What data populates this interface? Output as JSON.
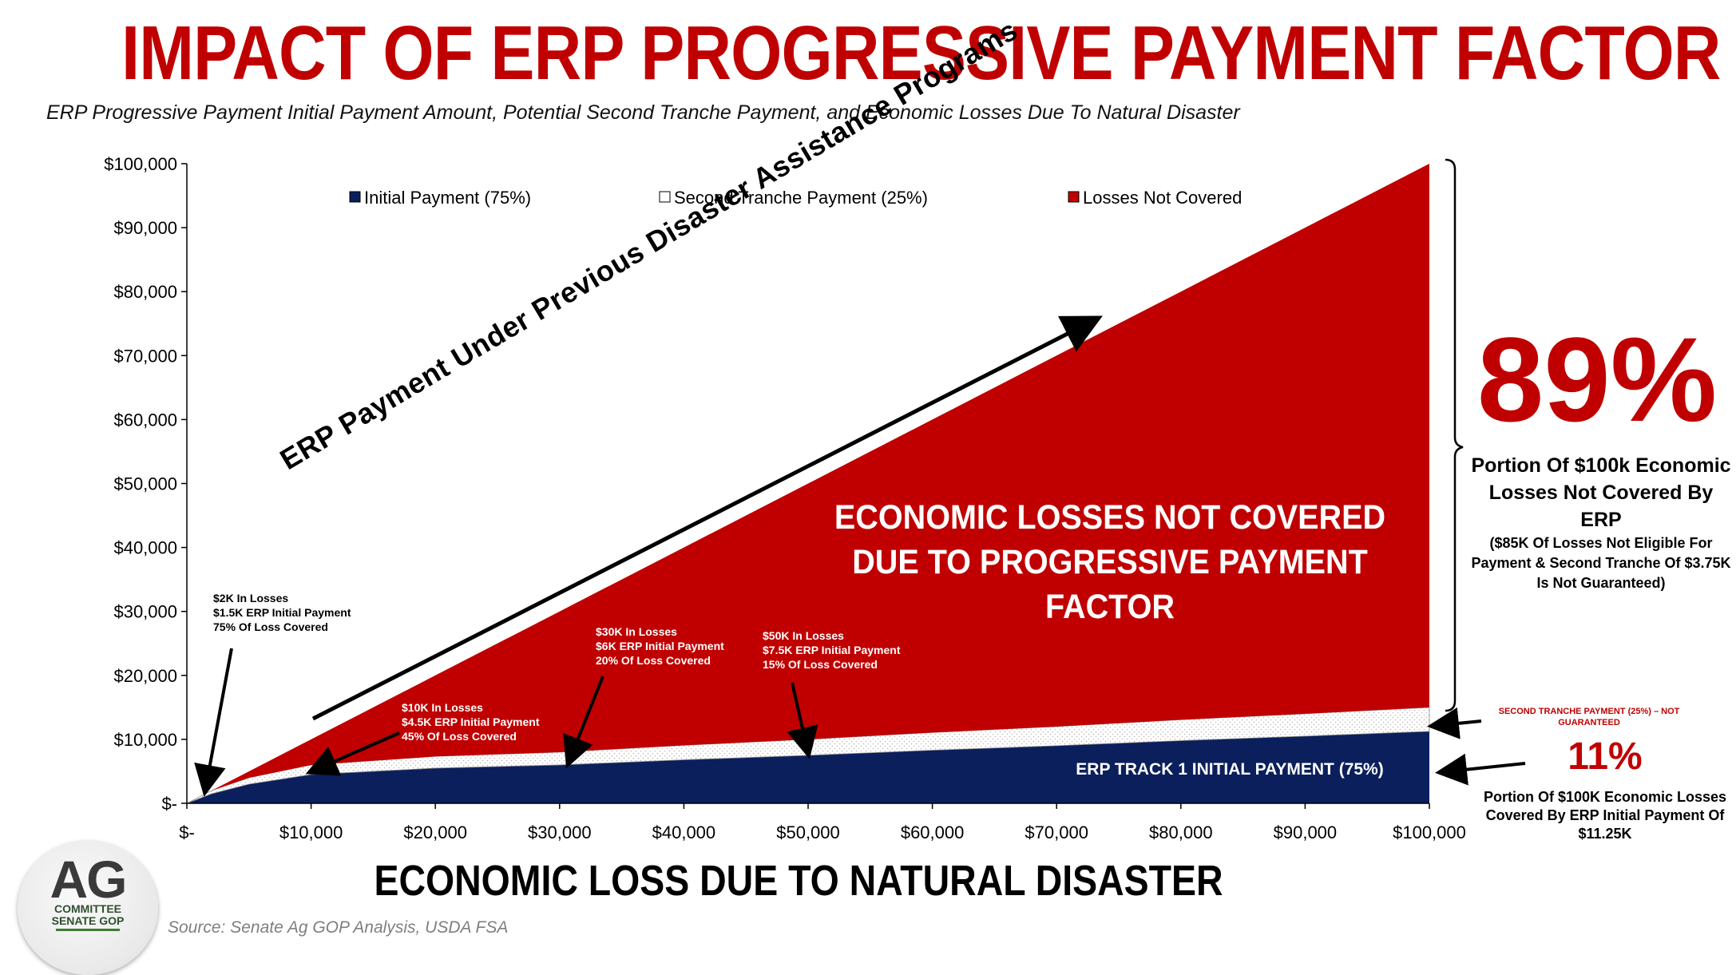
{
  "title": "IMPACT OF ERP PROGRESSIVE PAYMENT FACTOR",
  "subtitle": "ERP Progressive Payment Initial Payment Amount, Potential Second Tranche Payment, and Economic Losses Due To Natural Disaster",
  "colors": {
    "initial": "#0b1f5c",
    "tranche": "#ffffff",
    "losses": "#c00000",
    "accent_red": "#c00000"
  },
  "chart_data": {
    "type": "area",
    "xlabel": "ECONOMIC LOSS DUE TO NATURAL DISASTER",
    "xlim": [
      0,
      100000
    ],
    "ylim": [
      0,
      100000
    ],
    "x_ticks": [
      "$-",
      "$10,000",
      "$20,000",
      "$30,000",
      "$40,000",
      "$50,000",
      "$60,000",
      "$70,000",
      "$80,000",
      "$90,000",
      "$100,000"
    ],
    "y_ticks": [
      "$-",
      "$10,000",
      "$20,000",
      "$30,000",
      "$40,000",
      "$50,000",
      "$60,000",
      "$70,000",
      "$80,000",
      "$90,000",
      "$100,000"
    ],
    "legend_position": "top",
    "x": [
      0,
      2000,
      5000,
      10000,
      20000,
      30000,
      40000,
      50000,
      60000,
      70000,
      80000,
      90000,
      100000
    ],
    "series": [
      {
        "name": "Initial Payment (75%)",
        "values": [
          0,
          1500,
          3000,
          4500,
          5500,
          6000,
          6800,
          7500,
          8300,
          9000,
          9800,
          10500,
          11250
        ]
      },
      {
        "name": "Second Tranche Payment (25%)",
        "values": [
          0,
          500,
          1000,
          1500,
          1830,
          2000,
          2270,
          2500,
          2770,
          3000,
          3270,
          3500,
          3750
        ]
      },
      {
        "name": "Losses Not Covered",
        "values": [
          0,
          0,
          1000,
          4000,
          12670,
          22000,
          30930,
          40000,
          48930,
          58000,
          66930,
          76000,
          85000
        ]
      }
    ],
    "stacked": true,
    "grid": false
  },
  "annotations": {
    "a2k": [
      "$2K In Losses",
      "$1.5K ERP Initial Payment",
      "75% Of Loss Covered"
    ],
    "a10k": [
      "$10K In Losses",
      "$4.5K ERP Initial Payment",
      "45% Of Loss Covered"
    ],
    "a30k": [
      "$30K In Losses",
      "$6K ERP Initial Payment",
      "20% Of Loss Covered"
    ],
    "a50k": [
      "$50K In Losses",
      "$7.5K ERP Initial Payment",
      "15% Of Loss Covered"
    ],
    "diagonal": "ERP Payment Under Previous Disaster Assistance Programs",
    "uncovered": "ECONOMIC LOSSES NOT COVERED DUE TO PROGRESSIVE PAYMENT FACTOR",
    "track1": "ERP TRACK 1 INITIAL PAYMENT (75%)",
    "tranche_note": "SECOND TRANCHE PAYMENT (25%) – NOT GUARANTEED"
  },
  "callouts": {
    "pct_not_covered": "89%",
    "pct_not_covered_desc": "Portion Of $100k Economic Losses Not Covered By ERP",
    "pct_not_covered_note": "($85K Of Losses Not Eligible For Payment & Second Tranche Of $3.75K Is Not Guaranteed)",
    "pct_covered": "11%",
    "pct_covered_desc": "Portion Of $100K Economic Losses Covered By ERP Initial Payment Of $11.25K"
  },
  "source": "Source: Senate Ag GOP Analysis, USDA FSA",
  "logo": {
    "main": "AG",
    "line1": "COMMITTEE",
    "line2": "SENATE GOP"
  }
}
